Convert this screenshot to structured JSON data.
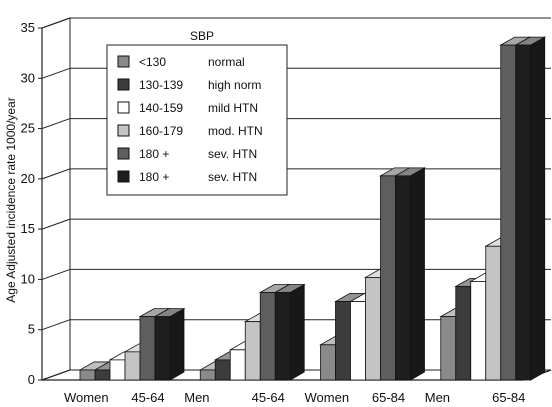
{
  "chart_data": {
    "type": "bar",
    "ylabel": "Age Adjusted incidence rate 1000/year",
    "ylim": [
      0,
      35
    ],
    "yticks": [
      0,
      5,
      10,
      15,
      20,
      25,
      30,
      35
    ],
    "grid": true,
    "legend_placement": "top-left",
    "legend_title": "SBP",
    "categories": [
      {
        "sex": "Women",
        "age": "45-64"
      },
      {
        "sex": "Men",
        "age": "45-64"
      },
      {
        "sex": "Women",
        "age": "65-84"
      },
      {
        "sex": "Men",
        "age": "65-84"
      }
    ],
    "series": [
      {
        "name": "<130",
        "note": "normal",
        "color": "#8a8a8a",
        "values": [
          1,
          1,
          3.5,
          6.3
        ]
      },
      {
        "name": "130-139",
        "note": "high norm",
        "color": "#3c3c3c",
        "values": [
          1,
          2,
          7.8,
          9.3
        ]
      },
      {
        "name": "140-159",
        "note": "mild HTN",
        "color": "#ffffff",
        "values": [
          2,
          3,
          7.8,
          9.8
        ]
      },
      {
        "name": "160-179",
        "note": "mod. HTN",
        "color": "#c4c4c4",
        "values": [
          2.8,
          5.8,
          10.2,
          13.3
        ]
      },
      {
        "name": "180 +",
        "note": "sev. HTN",
        "color": "#5e5e5e",
        "values": [
          6.3,
          8.7,
          20.3,
          33.3
        ]
      },
      {
        "name": "180 +",
        "note": "sev. HTN",
        "color": "#1e1e1e",
        "values": [
          6.3,
          8.7,
          20.3,
          33.3
        ]
      }
    ]
  }
}
